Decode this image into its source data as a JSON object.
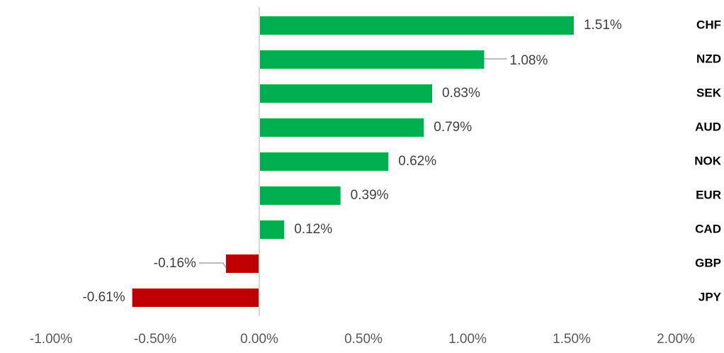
{
  "chart_data": {
    "type": "bar",
    "orientation": "horizontal",
    "categories": [
      "CHF",
      "NZD",
      "SEK",
      "AUD",
      "NOK",
      "EUR",
      "CAD",
      "GBP",
      "JPY"
    ],
    "values": [
      1.51,
      1.08,
      0.83,
      0.79,
      0.62,
      0.39,
      0.12,
      -0.16,
      -0.61
    ],
    "data_labels": [
      "1.51%",
      "1.08%",
      "0.83%",
      "0.79%",
      "0.62%",
      "0.39%",
      "0.12%",
      "-0.16%",
      "-0.61%"
    ],
    "xlim": [
      -1.0,
      2.0
    ],
    "x_ticks": [
      -1.0,
      -0.5,
      0.0,
      0.5,
      1.0,
      1.5,
      2.0
    ],
    "x_tick_labels": [
      "-1.00%",
      "-0.50%",
      "0.00%",
      "0.50%",
      "1.00%",
      "1.50%",
      "2.00%"
    ],
    "title": "",
    "xlabel": "",
    "ylabel": "",
    "grid": false,
    "legend": "none",
    "colors": {
      "positive": "#00B050",
      "negative": "#C00000",
      "axis": "#D9D9D9",
      "leader": "#A6A6A6"
    }
  }
}
